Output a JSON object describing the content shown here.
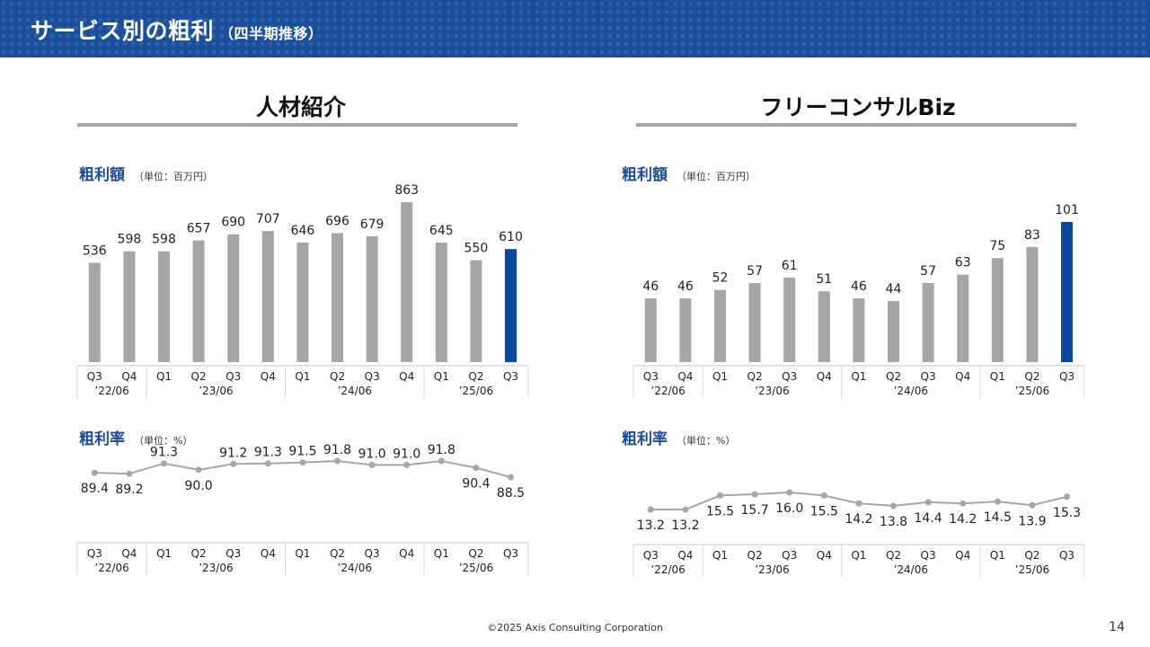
{
  "header": {
    "title": "サービス別の粗利",
    "subtitle": "（四半期推移）"
  },
  "sections": [
    {
      "title": "人材紹介"
    },
    {
      "title": "フリーコンサルBiz"
    }
  ],
  "labels": {
    "gross_profit": "粗利額",
    "gross_profit_unit": "（単位：百万円）",
    "margin": "粗利率",
    "margin_unit": "（単位：%）"
  },
  "colors": {
    "header": "#1a4f9c",
    "bar": "#a6a6a6",
    "bar_highlight": "#0d47a1",
    "line": "#a6a6a6",
    "label": "#1d4e97"
  },
  "chart_data": [
    {
      "type": "bar",
      "section": "人材紹介",
      "categories": [
        "Q3",
        "Q4",
        "Q1",
        "Q2",
        "Q3",
        "Q4",
        "Q1",
        "Q2",
        "Q3",
        "Q4",
        "Q1",
        "Q2",
        "Q3"
      ],
      "fiscal_years": [
        {
          "label": "’22/06",
          "count": 2
        },
        {
          "label": "’23/06",
          "count": 4
        },
        {
          "label": "’24/06",
          "count": 4
        },
        {
          "label": "’25/06",
          "count": 3
        }
      ],
      "values": [
        536,
        598,
        598,
        657,
        690,
        707,
        646,
        696,
        679,
        863,
        645,
        550,
        610
      ],
      "value_labels": [
        "536",
        "598",
        "598",
        "657",
        "690",
        "707",
        "646",
        "696",
        "679",
        "863",
        "645",
        "550",
        "610"
      ],
      "highlight_index": 12,
      "ylim": [
        0,
        863
      ]
    },
    {
      "type": "line",
      "section": "人材紹介",
      "categories": [
        "Q3",
        "Q4",
        "Q1",
        "Q2",
        "Q3",
        "Q4",
        "Q1",
        "Q2",
        "Q3",
        "Q4",
        "Q1",
        "Q2",
        "Q3"
      ],
      "fiscal_years": [
        {
          "label": "’22/06",
          "count": 2
        },
        {
          "label": "’23/06",
          "count": 4
        },
        {
          "label": "’24/06",
          "count": 4
        },
        {
          "label": "’25/06",
          "count": 3
        }
      ],
      "values": [
        89.4,
        89.2,
        91.3,
        90.0,
        91.2,
        91.3,
        91.5,
        91.8,
        91.0,
        91.0,
        91.8,
        90.4,
        88.5
      ],
      "value_labels": [
        "89.4",
        "89.2",
        "91.3",
        "90.0",
        "91.2",
        "91.3",
        "91.5",
        "91.8",
        "91.0",
        "91.0",
        "91.8",
        "90.4",
        "88.5"
      ],
      "label_positions": [
        "below",
        "below",
        "above",
        "below",
        "above",
        "above",
        "above",
        "above",
        "above",
        "above",
        "above",
        "below",
        "below"
      ],
      "ylim": [
        88.5,
        91.8
      ]
    },
    {
      "type": "bar",
      "section": "フリーコンサルBiz",
      "categories": [
        "Q3",
        "Q4",
        "Q1",
        "Q2",
        "Q3",
        "Q4",
        "Q1",
        "Q2",
        "Q3",
        "Q4",
        "Q1",
        "Q2",
        "Q3"
      ],
      "fiscal_years": [
        {
          "label": "’22/06",
          "count": 2
        },
        {
          "label": "’23/06",
          "count": 4
        },
        {
          "label": "’24/06",
          "count": 4
        },
        {
          "label": "’25/06",
          "count": 3
        }
      ],
      "values": [
        46,
        46,
        52,
        57,
        61,
        51,
        46,
        44,
        57,
        63,
        75,
        83,
        101
      ],
      "value_labels": [
        "46",
        "46",
        "52",
        "57",
        "61",
        "51",
        "46",
        "44",
        "57",
        "63",
        "75",
        "83",
        "101"
      ],
      "highlight_index": 12,
      "ylim": [
        0,
        101
      ]
    },
    {
      "type": "line",
      "section": "フリーコンサルBiz",
      "categories": [
        "Q3",
        "Q4",
        "Q1",
        "Q2",
        "Q3",
        "Q4",
        "Q1",
        "Q2",
        "Q3",
        "Q4",
        "Q1",
        "Q2",
        "Q3"
      ],
      "fiscal_years": [
        {
          "label": "’22/06",
          "count": 2
        },
        {
          "label": "’23/06",
          "count": 4
        },
        {
          "label": "’24/06",
          "count": 4
        },
        {
          "label": "’25/06",
          "count": 3
        }
      ],
      "values": [
        13.2,
        13.2,
        15.5,
        15.7,
        16.0,
        15.5,
        14.2,
        13.8,
        14.4,
        14.2,
        14.5,
        13.9,
        15.3
      ],
      "value_labels": [
        "13.2",
        "13.2",
        "15.5",
        "15.7",
        "16.0",
        "15.5",
        "14.2",
        "13.8",
        "14.4",
        "14.2",
        "14.5",
        "13.9",
        "15.3"
      ],
      "label_positions": [
        "below",
        "below",
        "below",
        "below",
        "below",
        "below",
        "below",
        "below",
        "below",
        "below",
        "below",
        "below",
        "below"
      ],
      "ylim": [
        13.2,
        16.0
      ]
    }
  ],
  "footer": {
    "copyright": "©2025 Axis Consulting Corporation"
  },
  "page_number": "14"
}
